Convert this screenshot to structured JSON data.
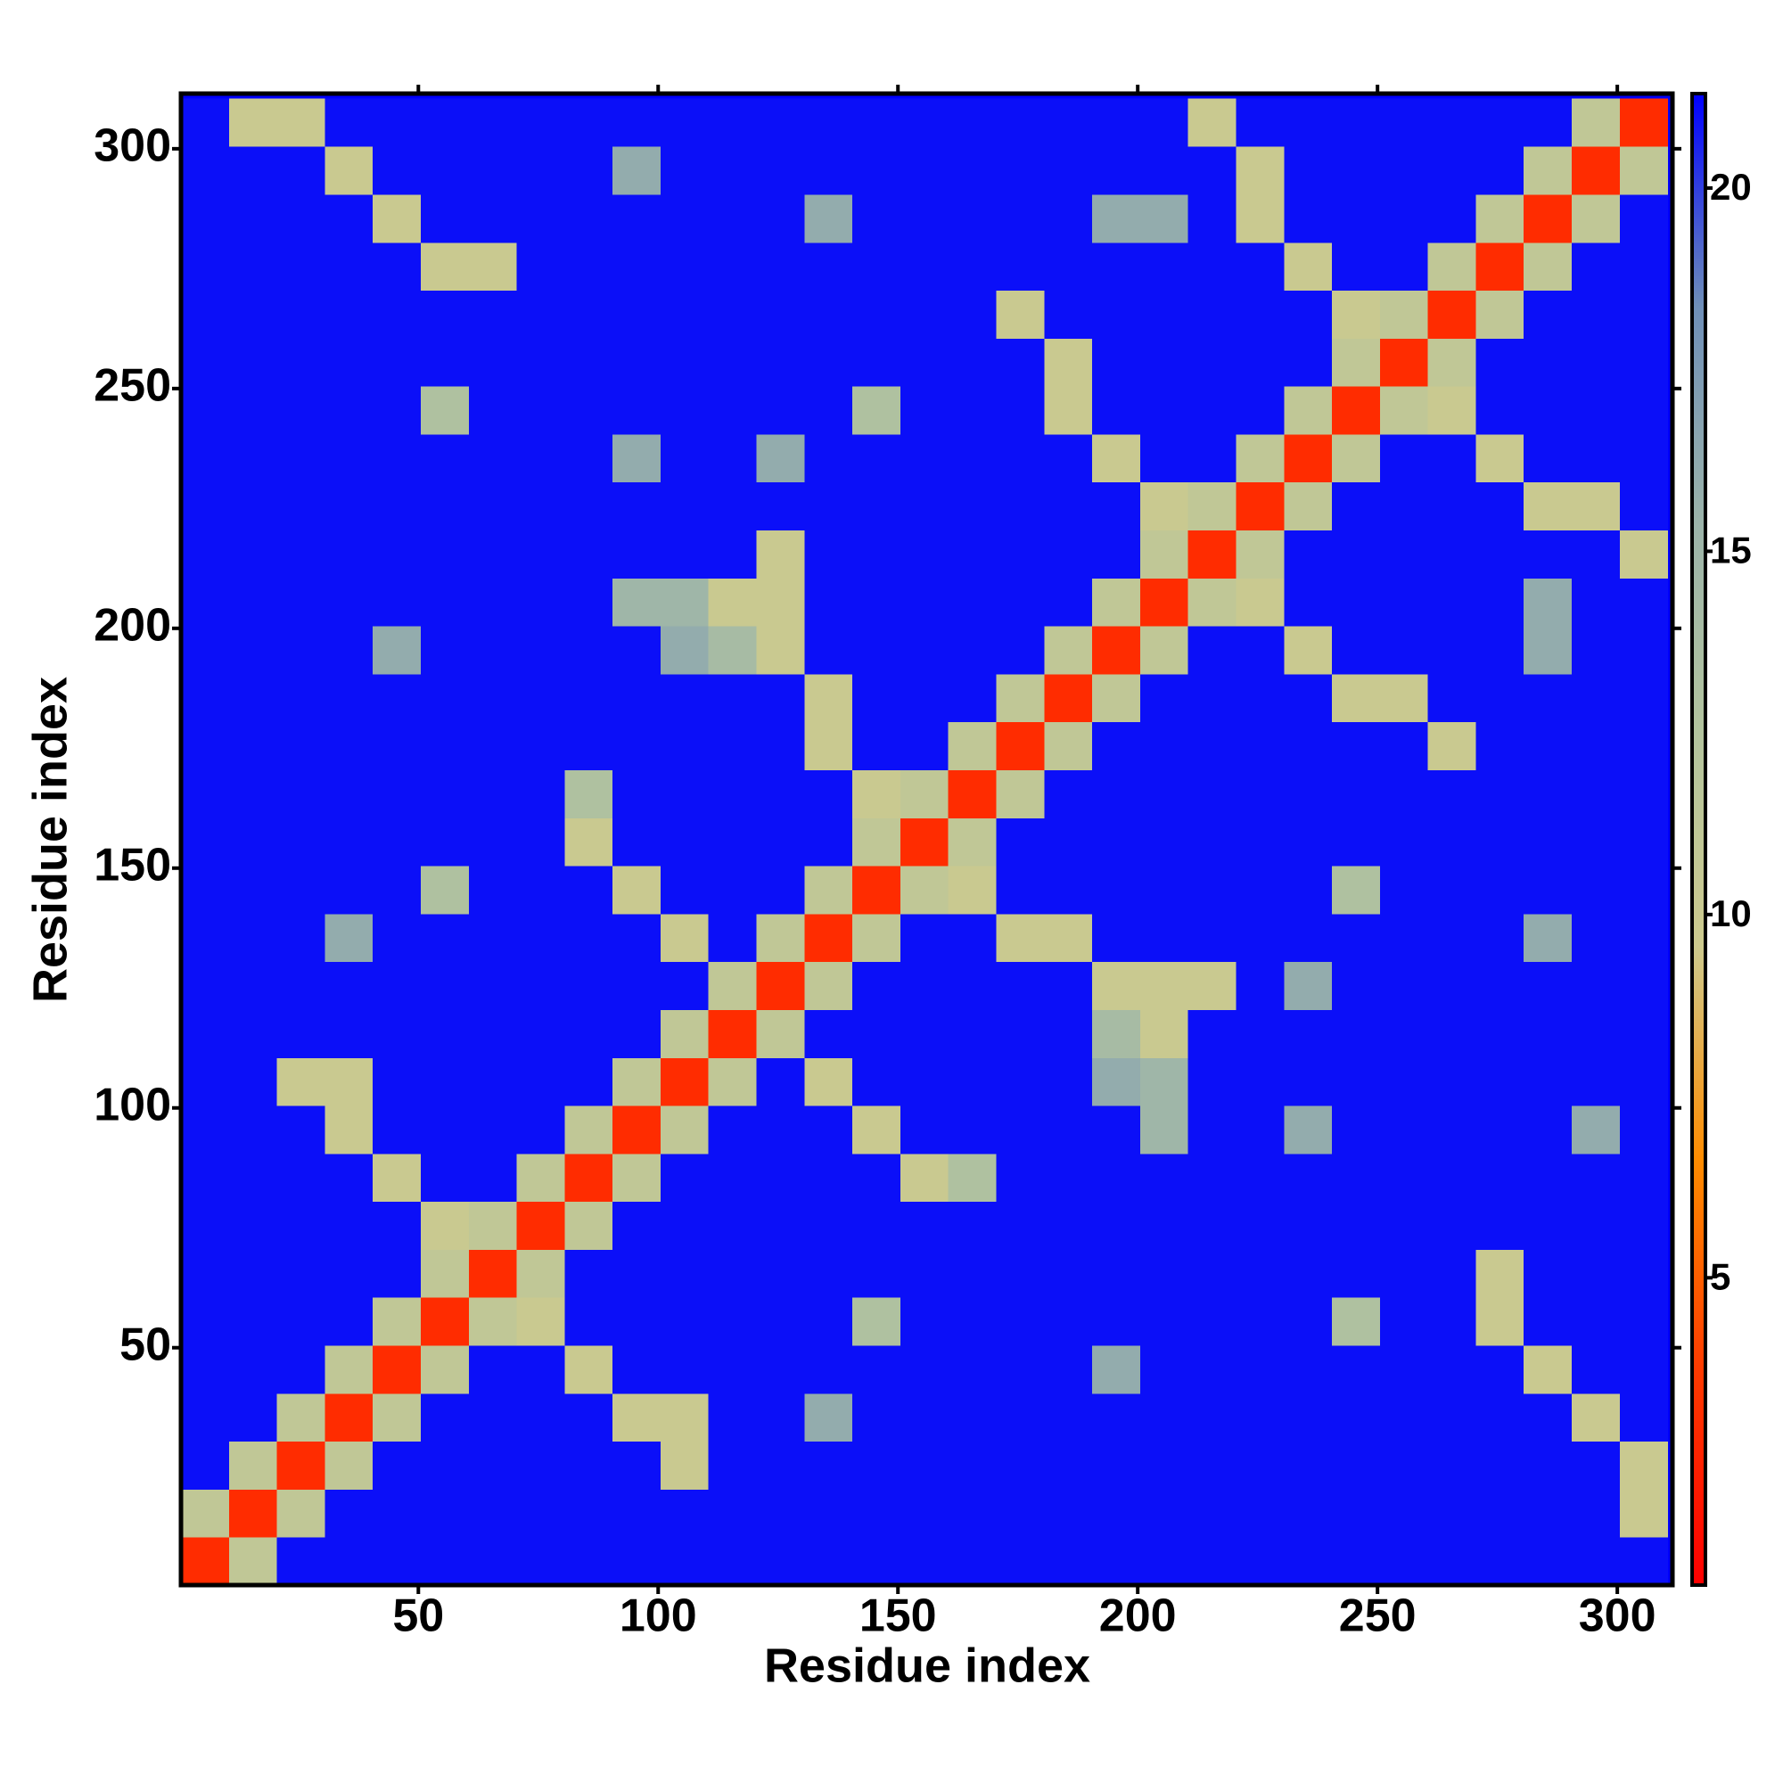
{
  "chart_data": {
    "type": "heatmap",
    "x_label": "Residue index",
    "y_label": "Residue index",
    "xlim": [
      0.5,
      311.5
    ],
    "ylim": [
      0.5,
      311.5
    ],
    "xticks": [
      50,
      100,
      150,
      200,
      250,
      300
    ],
    "yticks": [
      50,
      100,
      150,
      200,
      250,
      300
    ],
    "zlim": [
      0.77,
      21.3
    ],
    "zticks": [
      5,
      10,
      15,
      20
    ],
    "colors": [
      "#ff0000",
      "#ff3a00",
      "#ff8c00",
      "#cdca8e",
      "#b3c49e",
      "#9bb3aa",
      "#6f8fb8",
      "#0000ff"
    ],
    "xbins": [
      0.5,
      10.5,
      20.5,
      30.5,
      40.5,
      50.5,
      60.5,
      70.5,
      80.5,
      90.5,
      100.5,
      110.5,
      120.5,
      130.5,
      140.5,
      150.5,
      160.5,
      170.5,
      180.5,
      190.5,
      200.5,
      210.5,
      220.5,
      230.5,
      240.5,
      250.5,
      260.5,
      270.5,
      280.5,
      290.5,
      300.5,
      310.5
    ],
    "ybins": [
      0.5,
      10.5,
      20.5,
      30.5,
      40.5,
      50.5,
      60.5,
      70.5,
      80.5,
      90.5,
      100.5,
      110.5,
      120.5,
      130.5,
      140.5,
      150.5,
      160.5,
      170.5,
      180.5,
      190.5,
      200.5,
      210.5,
      220.5,
      230.5,
      240.5,
      250.5,
      260.5,
      270.5,
      280.5,
      290.5,
      300.5,
      310.5
    ],
    "z": [
      [
        3,
        11,
        21,
        21,
        21,
        21,
        21,
        21,
        21,
        21,
        21,
        21,
        21,
        21,
        21,
        21,
        21,
        21,
        21,
        21,
        21,
        21,
        21,
        21,
        21,
        21,
        21,
        21,
        21,
        21,
        21
      ],
      [
        11,
        3,
        11,
        21,
        21,
        21,
        21,
        21,
        21,
        21,
        21,
        21,
        21,
        21,
        21,
        21,
        21,
        21,
        21,
        21,
        21,
        21,
        21,
        21,
        21,
        21,
        21,
        21,
        21,
        21,
        10
      ],
      [
        21,
        11,
        3,
        11,
        21,
        21,
        21,
        21,
        21,
        21,
        10,
        21,
        21,
        21,
        21,
        21,
        21,
        21,
        21,
        21,
        21,
        21,
        21,
        21,
        21,
        21,
        21,
        21,
        21,
        21,
        10
      ],
      [
        21,
        21,
        11,
        3,
        11,
        21,
        21,
        21,
        21,
        10,
        10,
        21,
        21,
        16,
        21,
        21,
        21,
        21,
        21,
        21,
        21,
        21,
        21,
        21,
        21,
        21,
        21,
        21,
        21,
        10,
        21
      ],
      [
        21,
        21,
        21,
        11,
        3,
        11,
        21,
        21,
        10,
        21,
        21,
        21,
        21,
        21,
        21,
        21,
        21,
        21,
        21,
        16,
        21,
        21,
        21,
        21,
        21,
        21,
        21,
        21,
        10,
        21,
        21
      ],
      [
        21,
        21,
        21,
        21,
        11,
        3,
        11,
        10,
        21,
        21,
        21,
        21,
        21,
        21,
        13,
        21,
        21,
        21,
        21,
        21,
        21,
        21,
        21,
        21,
        13,
        21,
        21,
        10,
        21,
        21,
        21
      ],
      [
        21,
        21,
        21,
        21,
        21,
        11,
        3,
        11,
        21,
        21,
        21,
        21,
        21,
        21,
        21,
        21,
        21,
        21,
        21,
        21,
        21,
        21,
        21,
        21,
        21,
        21,
        21,
        10,
        21,
        21,
        21
      ],
      [
        21,
        21,
        21,
        21,
        21,
        10,
        11,
        3,
        11,
        21,
        21,
        21,
        21,
        21,
        21,
        21,
        21,
        21,
        21,
        21,
        21,
        21,
        21,
        21,
        21,
        21,
        21,
        21,
        21,
        21,
        21
      ],
      [
        21,
        21,
        21,
        21,
        10,
        21,
        21,
        11,
        3,
        11,
        21,
        21,
        21,
        21,
        21,
        10,
        13,
        21,
        21,
        21,
        21,
        21,
        21,
        21,
        21,
        21,
        21,
        21,
        21,
        21,
        21
      ],
      [
        21,
        21,
        21,
        10,
        21,
        21,
        21,
        21,
        11,
        3,
        11,
        21,
        21,
        21,
        10,
        21,
        21,
        21,
        21,
        21,
        15,
        21,
        21,
        16,
        21,
        21,
        21,
        21,
        21,
        16,
        21
      ],
      [
        21,
        21,
        10,
        10,
        21,
        21,
        21,
        21,
        21,
        11,
        3,
        11,
        21,
        10,
        21,
        21,
        21,
        21,
        21,
        16,
        15,
        21,
        21,
        21,
        21,
        21,
        21,
        21,
        21,
        21,
        21
      ],
      [
        21,
        21,
        21,
        21,
        21,
        21,
        21,
        21,
        21,
        21,
        11,
        3,
        11,
        21,
        21,
        21,
        21,
        21,
        21,
        14,
        10,
        21,
        21,
        21,
        21,
        21,
        21,
        21,
        21,
        21,
        21
      ],
      [
        21,
        21,
        21,
        21,
        21,
        21,
        21,
        21,
        21,
        21,
        21,
        11,
        3,
        11,
        21,
        21,
        21,
        21,
        21,
        10,
        10,
        10,
        21,
        16,
        21,
        21,
        21,
        21,
        21,
        21,
        21
      ],
      [
        21,
        21,
        21,
        16,
        21,
        21,
        21,
        21,
        21,
        21,
        10,
        21,
        11,
        3,
        11,
        21,
        21,
        10,
        10,
        21,
        21,
        21,
        21,
        21,
        21,
        21,
        21,
        21,
        16,
        21,
        21
      ],
      [
        21,
        21,
        21,
        21,
        21,
        13,
        21,
        21,
        21,
        10,
        21,
        21,
        21,
        11,
        3,
        11,
        10,
        21,
        21,
        21,
        21,
        21,
        21,
        21,
        13,
        21,
        21,
        21,
        21,
        21,
        21
      ],
      [
        21,
        21,
        21,
        21,
        21,
        21,
        21,
        21,
        10,
        21,
        21,
        21,
        21,
        21,
        11,
        3,
        11,
        21,
        21,
        21,
        21,
        21,
        21,
        21,
        21,
        21,
        21,
        21,
        21,
        21,
        21
      ],
      [
        21,
        21,
        21,
        21,
        21,
        21,
        21,
        21,
        13,
        21,
        21,
        21,
        21,
        21,
        10,
        11,
        3,
        11,
        21,
        21,
        21,
        21,
        21,
        21,
        21,
        21,
        21,
        21,
        21,
        21,
        21
      ],
      [
        21,
        21,
        21,
        21,
        21,
        21,
        21,
        21,
        21,
        21,
        21,
        21,
        21,
        10,
        21,
        21,
        11,
        3,
        11,
        21,
        21,
        21,
        21,
        21,
        21,
        21,
        10,
        21,
        21,
        21,
        21
      ],
      [
        21,
        21,
        21,
        21,
        21,
        21,
        21,
        21,
        21,
        21,
        21,
        21,
        21,
        10,
        21,
        21,
        21,
        11,
        3,
        11,
        21,
        21,
        21,
        21,
        10,
        10,
        21,
        21,
        21,
        21,
        21
      ],
      [
        21,
        21,
        21,
        21,
        16,
        21,
        21,
        21,
        21,
        21,
        16,
        14,
        10,
        21,
        21,
        21,
        21,
        21,
        11,
        3,
        11,
        21,
        21,
        10,
        21,
        21,
        21,
        21,
        16,
        21,
        21
      ],
      [
        21,
        21,
        21,
        21,
        21,
        21,
        21,
        21,
        21,
        15,
        15,
        10,
        10,
        21,
        21,
        21,
        21,
        21,
        21,
        11,
        3,
        11,
        10,
        21,
        21,
        21,
        21,
        21,
        16,
        21,
        21
      ],
      [
        21,
        21,
        21,
        21,
        21,
        21,
        21,
        21,
        21,
        21,
        21,
        21,
        10,
        21,
        21,
        21,
        21,
        21,
        21,
        21,
        11,
        3,
        11,
        21,
        21,
        21,
        21,
        21,
        21,
        21,
        10
      ],
      [
        21,
        21,
        21,
        21,
        21,
        21,
        21,
        21,
        21,
        21,
        21,
        21,
        21,
        21,
        21,
        21,
        21,
        21,
        21,
        21,
        10,
        11,
        3,
        11,
        21,
        21,
        21,
        21,
        10,
        10,
        21
      ],
      [
        21,
        21,
        21,
        21,
        21,
        21,
        21,
        21,
        21,
        16,
        21,
        21,
        16,
        21,
        21,
        21,
        21,
        21,
        21,
        10,
        21,
        21,
        11,
        3,
        11,
        21,
        21,
        10,
        21,
        21,
        21
      ],
      [
        21,
        21,
        21,
        21,
        21,
        13,
        21,
        21,
        21,
        21,
        21,
        21,
        21,
        21,
        13,
        21,
        21,
        21,
        10,
        21,
        21,
        21,
        21,
        11,
        3,
        11,
        10,
        21,
        21,
        21,
        21
      ],
      [
        21,
        21,
        21,
        21,
        21,
        21,
        21,
        21,
        21,
        21,
        21,
        21,
        21,
        21,
        21,
        21,
        21,
        21,
        10,
        21,
        21,
        21,
        21,
        21,
        11,
        3,
        11,
        21,
        21,
        21,
        21
      ],
      [
        21,
        21,
        21,
        21,
        21,
        21,
        21,
        21,
        21,
        21,
        21,
        21,
        21,
        21,
        21,
        21,
        21,
        10,
        21,
        21,
        21,
        21,
        21,
        21,
        10,
        11,
        3,
        11,
        21,
        21,
        21
      ],
      [
        21,
        21,
        21,
        21,
        21,
        10,
        10,
        21,
        21,
        21,
        21,
        21,
        21,
        21,
        21,
        21,
        21,
        21,
        21,
        21,
        21,
        21,
        21,
        10,
        21,
        21,
        11,
        3,
        11,
        21,
        21
      ],
      [
        21,
        21,
        21,
        21,
        10,
        21,
        21,
        21,
        21,
        21,
        21,
        21,
        21,
        16,
        21,
        21,
        21,
        21,
        21,
        16,
        16,
        21,
        10,
        21,
        21,
        21,
        21,
        11,
        3,
        11,
        21
      ],
      [
        21,
        21,
        21,
        10,
        21,
        21,
        21,
        21,
        21,
        16,
        21,
        21,
        21,
        21,
        21,
        21,
        21,
        21,
        21,
        21,
        21,
        21,
        10,
        21,
        21,
        21,
        21,
        21,
        11,
        3,
        11
      ],
      [
        21,
        10,
        10,
        21,
        21,
        21,
        21,
        21,
        21,
        21,
        21,
        21,
        21,
        21,
        21,
        21,
        21,
        21,
        21,
        21,
        21,
        10,
        21,
        21,
        21,
        21,
        21,
        21,
        21,
        11,
        3
      ]
    ]
  }
}
